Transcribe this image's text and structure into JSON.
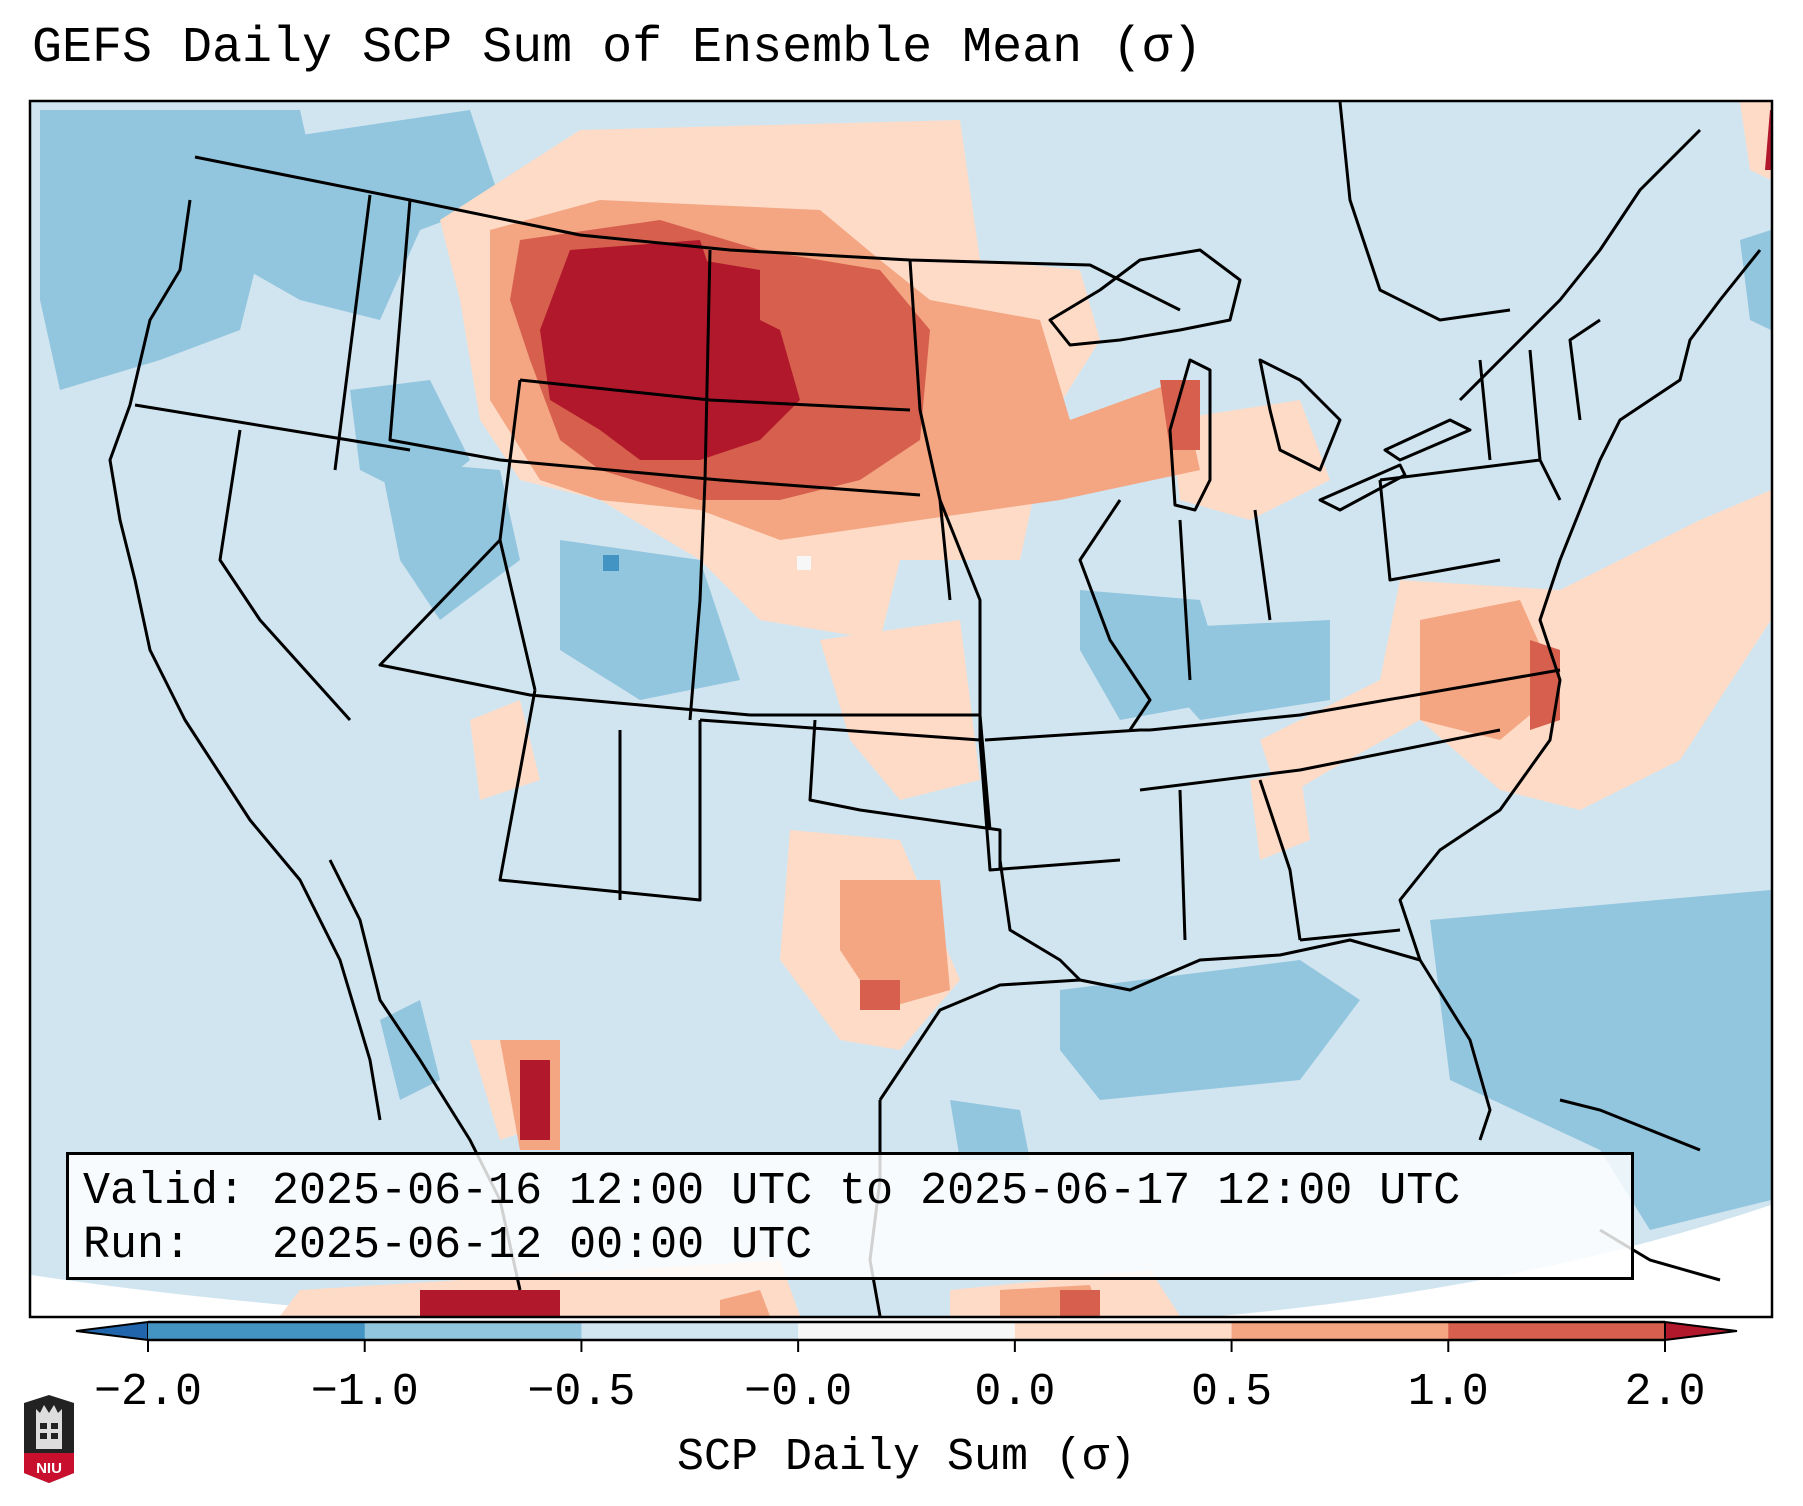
{
  "title": "GEFS Daily SCP Sum of Ensemble Mean (σ)",
  "info_box": {
    "valid_label": "Valid:",
    "valid_value": "2025-06-16 12:00 UTC to 2025-06-17 12:00 UTC",
    "run_label": "Run:",
    "run_value": "2025-06-12 00:00 UTC"
  },
  "colorbar": {
    "label": "SCP Daily Sum (σ)",
    "ticks": [
      "−2.0",
      "−1.0",
      "−0.5",
      "−0.0",
      "0.0",
      "0.5",
      "1.0",
      "2.0"
    ],
    "bins": [
      {
        "range": "< -2.0",
        "color": "#2166ac"
      },
      {
        "range": "-2.0 to -1.0",
        "color": "#4393c3"
      },
      {
        "range": "-1.0 to -0.5",
        "color": "#92c5de"
      },
      {
        "range": "-0.5 to -0.0",
        "color": "#d1e5f0"
      },
      {
        "range": "-0.0 to 0.0",
        "color": "#f7f7f7"
      },
      {
        "range": "0.0 to 0.5",
        "color": "#fddbc7"
      },
      {
        "range": "0.5 to 1.0",
        "color": "#f4a582"
      },
      {
        "range": "1.0 to 2.0",
        "color": "#d6604d"
      },
      {
        "range": "> 2.0",
        "color": "#b2182b"
      }
    ],
    "extend": "both"
  },
  "logo": {
    "text": "NIU",
    "colors": {
      "shield": "#222222",
      "band": "#c8102e"
    }
  },
  "map": {
    "projection": "Lambert Conformal",
    "region": "CONUS",
    "features": [
      "coastlines",
      "country borders",
      "state borders"
    ],
    "highlights": [
      {
        "area": "Montana / Wyoming / Dakotas",
        "category": "> 2.0"
      },
      {
        "area": "Minnesota / Wisconsin / Michigan",
        "category": "0.5 to 1.0"
      },
      {
        "area": "North Carolina / Virginia coast",
        "category": "1.0 to 2.0"
      },
      {
        "area": "Ohio Valley / Illinois / Indiana",
        "category": "-1.0 to -0.5"
      },
      {
        "area": "Gulf of Mexico",
        "category": "-1.0 to -0.5"
      },
      {
        "area": "Pacific Northwest offshore",
        "category": "-1.0 to -0.5"
      },
      {
        "area": "Northern Mexico",
        "category": "> 2.0"
      }
    ]
  }
}
